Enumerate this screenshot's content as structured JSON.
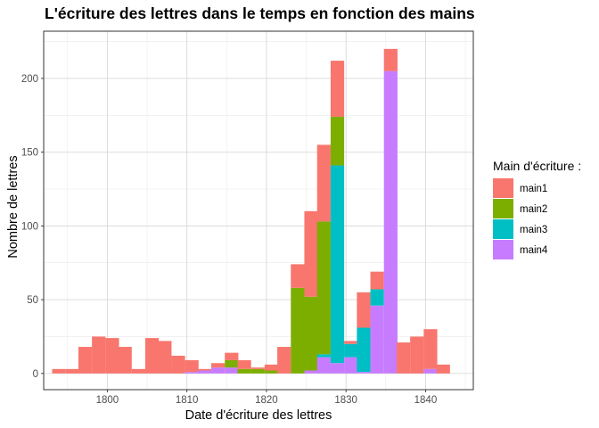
{
  "chart_data": {
    "type": "bar",
    "stacked": true,
    "title": "L'écriture des lettres dans le temps en fonction des mains",
    "xlabel": "Date d'écriture des lettres",
    "ylabel": "Nombre de lettres",
    "xlim": [
      1792,
      1846
    ],
    "ylim": [
      -11,
      232
    ],
    "x_ticks": [
      1800,
      1810,
      1820,
      1830,
      1840
    ],
    "y_ticks": [
      0,
      50,
      100,
      150,
      200
    ],
    "grid": true,
    "legend_position": "right",
    "legend_title": "Main d'écriture :",
    "bin_width": 1.67,
    "bins": [
      1793.9,
      1795.6,
      1797.2,
      1798.9,
      1800.6,
      1802.2,
      1803.9,
      1805.6,
      1807.2,
      1808.9,
      1810.6,
      1812.2,
      1813.9,
      1815.6,
      1817.2,
      1818.9,
      1820.6,
      1822.2,
      1823.9,
      1825.6,
      1827.2,
      1828.9,
      1830.6,
      1832.2,
      1833.9,
      1835.6,
      1837.2,
      1838.9,
      1840.6,
      1842.2
    ],
    "series": [
      {
        "name": "main1",
        "color": "#F8766D",
        "values": [
          3,
          3,
          18,
          25,
          24,
          18,
          3,
          24,
          22,
          12,
          8,
          1,
          3,
          5,
          6,
          1,
          4,
          18,
          16,
          58,
          52,
          38,
          2,
          24,
          12,
          15,
          21,
          25,
          27,
          6
        ]
      },
      {
        "name": "main2",
        "color": "#7CAE00",
        "values": [
          0,
          0,
          0,
          0,
          0,
          0,
          0,
          0,
          0,
          0,
          0,
          0,
          0,
          5,
          3,
          3,
          2,
          0,
          58,
          50,
          90,
          33,
          0,
          0,
          0,
          0,
          0,
          0,
          0,
          0
        ]
      },
      {
        "name": "main3",
        "color": "#00BFC4",
        "values": [
          0,
          0,
          0,
          0,
          0,
          0,
          0,
          0,
          0,
          0,
          0,
          0,
          0,
          0,
          0,
          0,
          0,
          0,
          0,
          0,
          2,
          134,
          9,
          30,
          11,
          0,
          0,
          0,
          0,
          0
        ]
      },
      {
        "name": "main4",
        "color": "#C77CFF",
        "values": [
          0,
          0,
          0,
          0,
          0,
          0,
          0,
          0,
          0,
          0,
          1,
          2,
          4,
          4,
          0,
          0,
          0,
          0,
          0,
          2,
          11,
          7,
          11,
          1,
          46,
          205,
          0,
          0,
          3,
          0
        ]
      }
    ]
  }
}
